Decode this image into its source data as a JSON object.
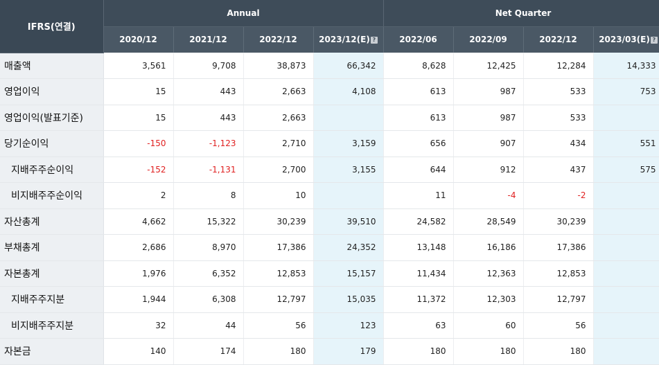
{
  "table": {
    "label_header": "IFRS(연결)",
    "group_headers": [
      "Annual",
      "Net Quarter"
    ],
    "columns": [
      {
        "label": "2020/12",
        "estimate": false
      },
      {
        "label": "2021/12",
        "estimate": false
      },
      {
        "label": "2022/12",
        "estimate": false
      },
      {
        "label": "2023/12(E)",
        "estimate": true
      },
      {
        "label": "2022/06",
        "estimate": false
      },
      {
        "label": "2022/09",
        "estimate": false
      },
      {
        "label": "2022/12",
        "estimate": false
      },
      {
        "label": "2023/03(E)",
        "estimate": true
      }
    ],
    "estimate_icon": "help-icon",
    "colors": {
      "header_bg": "#3e4c59",
      "estimate_col_bg": "#e6f4fa",
      "label_col_bg": "#edf0f3",
      "negative_text": "#e02020"
    },
    "rows": [
      {
        "label": "매출액",
        "sub": false,
        "values": [
          "3,561",
          "9,708",
          "38,873",
          "66,342",
          "8,628",
          "12,425",
          "12,284",
          "14,333"
        ]
      },
      {
        "label": "영업이익",
        "sub": false,
        "values": [
          "15",
          "443",
          "2,663",
          "4,108",
          "613",
          "987",
          "533",
          "753"
        ]
      },
      {
        "label": "영업이익(발표기준)",
        "sub": false,
        "values": [
          "15",
          "443",
          "2,663",
          "",
          "613",
          "987",
          "533",
          ""
        ]
      },
      {
        "label": "당기순이익",
        "sub": false,
        "values": [
          "-150",
          "-1,123",
          "2,710",
          "3,159",
          "656",
          "907",
          "434",
          "551"
        ]
      },
      {
        "label": "지배주주순이익",
        "sub": true,
        "values": [
          "-152",
          "-1,131",
          "2,700",
          "3,155",
          "644",
          "912",
          "437",
          "575"
        ]
      },
      {
        "label": "비지배주주순이익",
        "sub": true,
        "values": [
          "2",
          "8",
          "10",
          "",
          "11",
          "-4",
          "-2",
          ""
        ]
      },
      {
        "label": "자산총계",
        "sub": false,
        "values": [
          "4,662",
          "15,322",
          "30,239",
          "39,510",
          "24,582",
          "28,549",
          "30,239",
          ""
        ]
      },
      {
        "label": "부채총계",
        "sub": false,
        "values": [
          "2,686",
          "8,970",
          "17,386",
          "24,352",
          "13,148",
          "16,186",
          "17,386",
          ""
        ]
      },
      {
        "label": "자본총계",
        "sub": false,
        "values": [
          "1,976",
          "6,352",
          "12,853",
          "15,157",
          "11,434",
          "12,363",
          "12,853",
          ""
        ]
      },
      {
        "label": "지배주주지분",
        "sub": true,
        "values": [
          "1,944",
          "6,308",
          "12,797",
          "15,035",
          "11,372",
          "12,303",
          "12,797",
          ""
        ]
      },
      {
        "label": "비지배주주지분",
        "sub": true,
        "values": [
          "32",
          "44",
          "56",
          "123",
          "63",
          "60",
          "56",
          ""
        ]
      },
      {
        "label": "자본금",
        "sub": false,
        "values": [
          "140",
          "174",
          "180",
          "179",
          "180",
          "180",
          "180",
          ""
        ]
      }
    ]
  }
}
